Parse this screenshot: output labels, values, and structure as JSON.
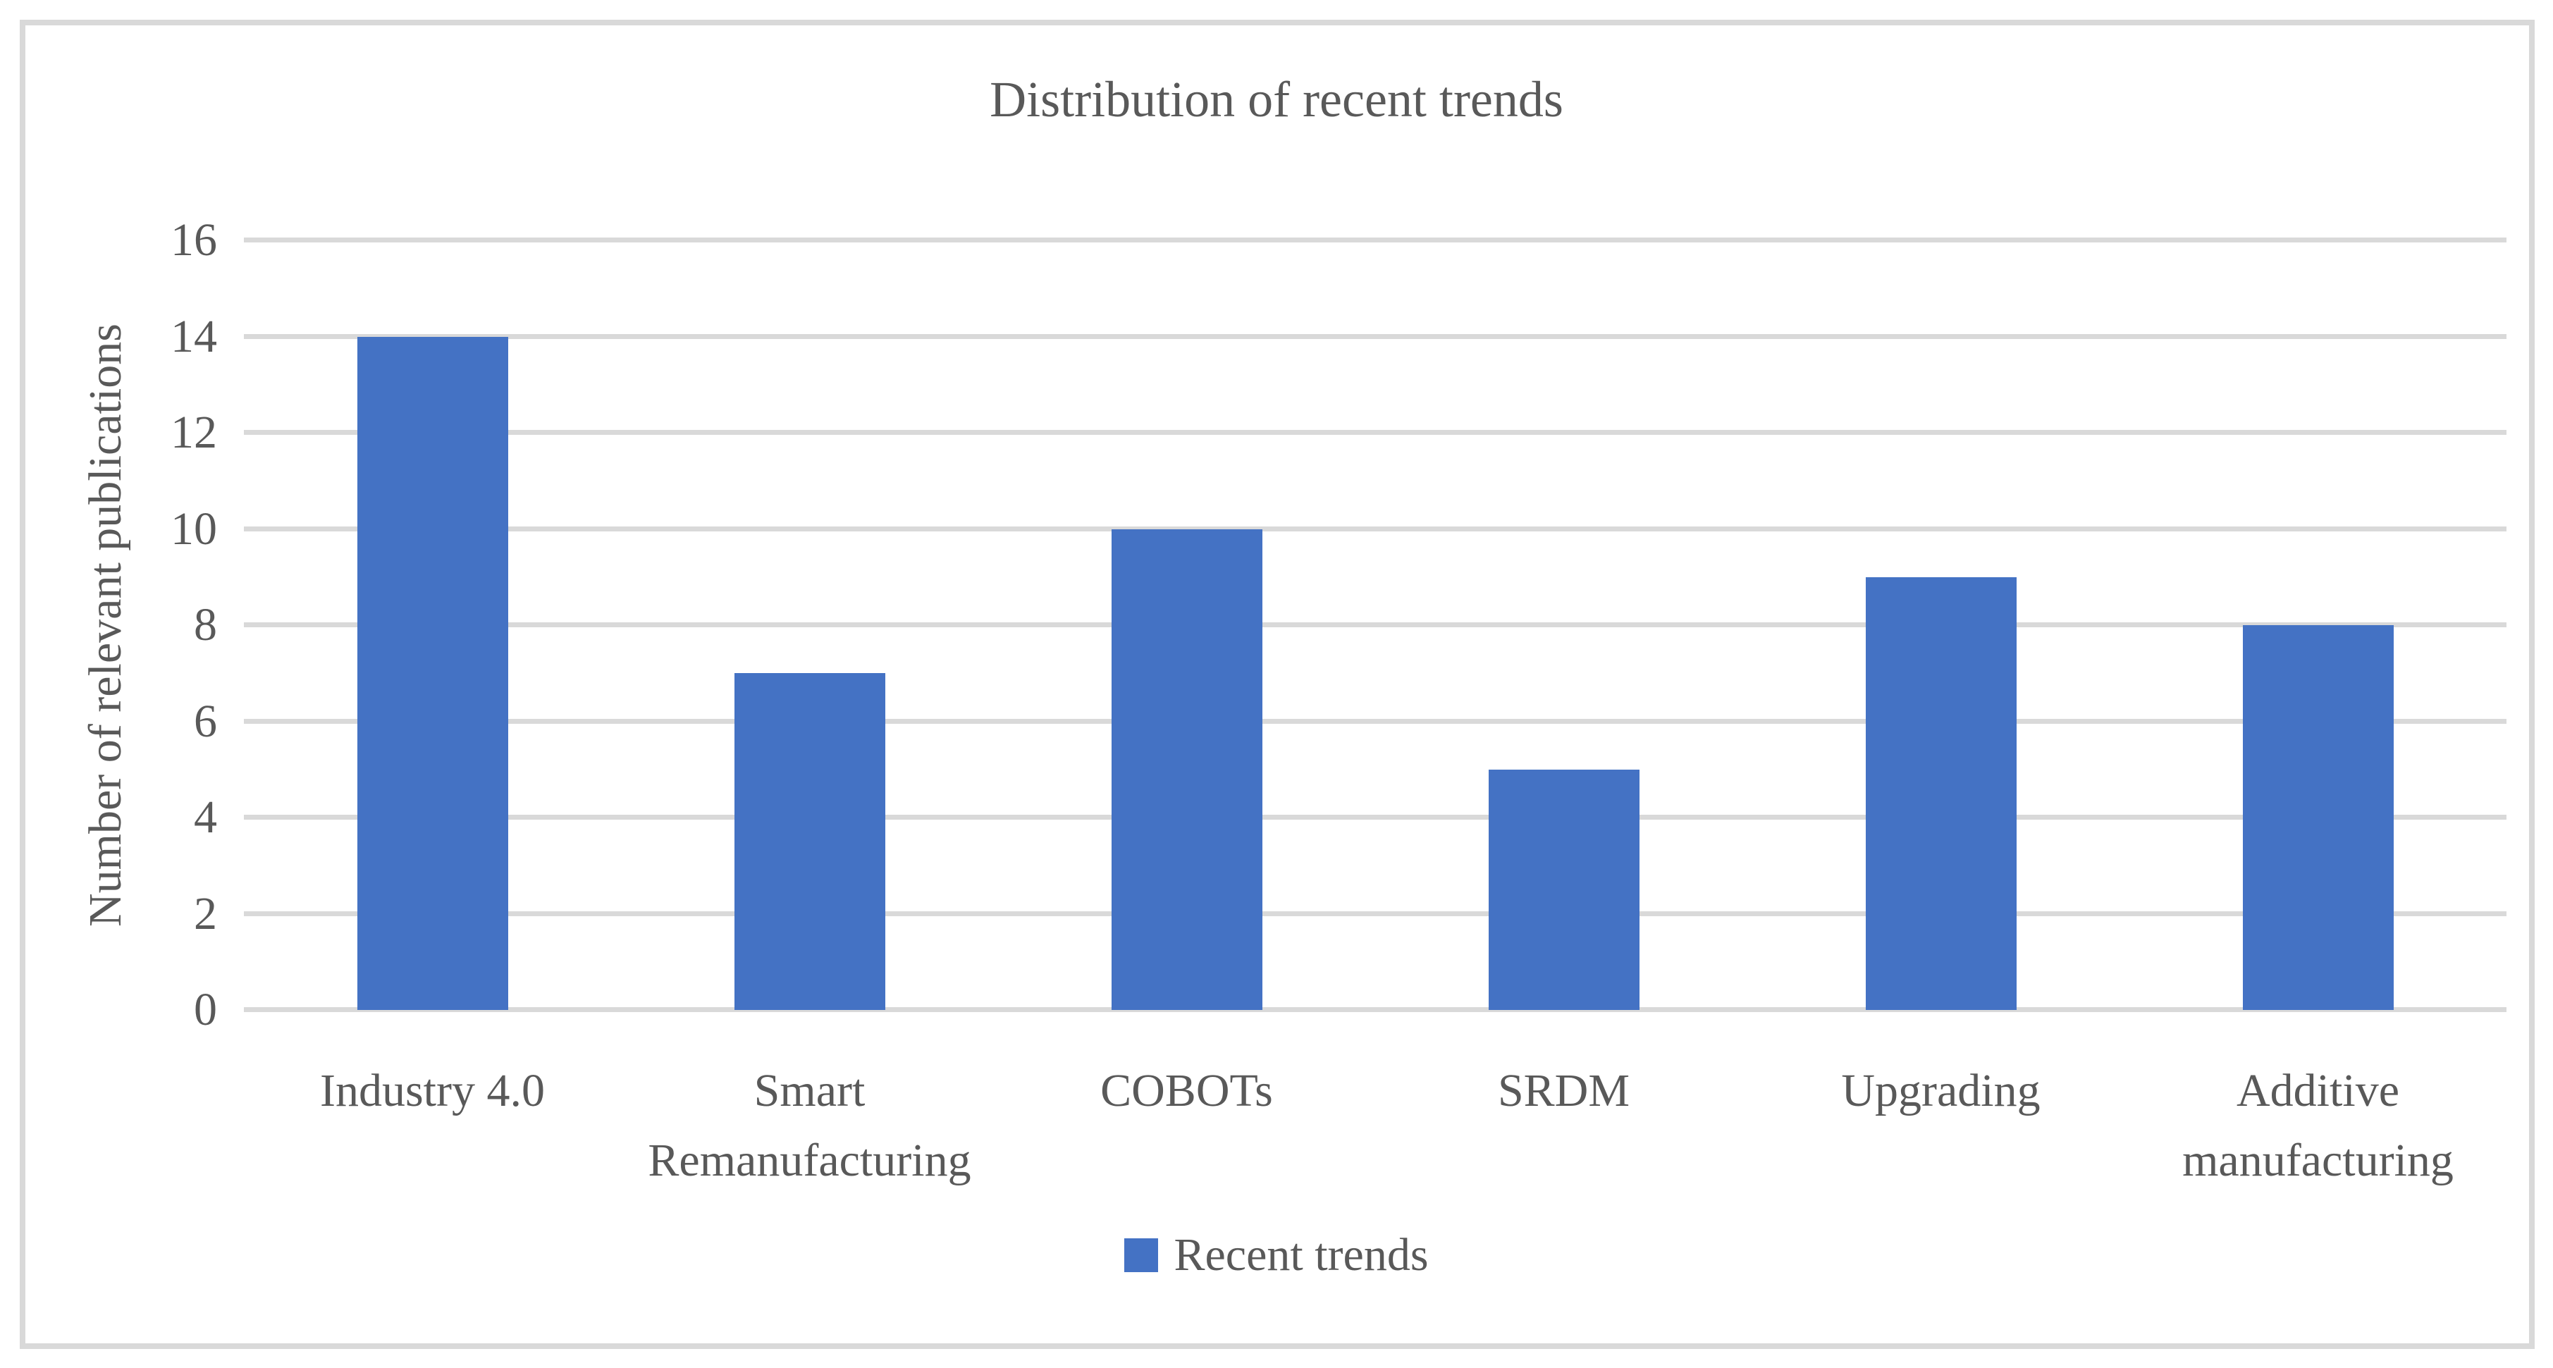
{
  "chart_data": {
    "type": "bar",
    "title": "Distribution of recent trends",
    "xlabel": "",
    "ylabel": "Number of relevant publications",
    "categories": [
      "Industry 4.0",
      "Smart Remanufacturing",
      "COBOTs",
      "SRDM",
      "Upgrading",
      "Additive manufacturing"
    ],
    "series": [
      {
        "name": "Recent trends",
        "values": [
          14,
          7,
          10,
          5,
          9,
          8
        ],
        "color": "#4472C4"
      }
    ],
    "ylim": [
      0,
      16
    ],
    "yticks": [
      0,
      2,
      4,
      6,
      8,
      10,
      12,
      14,
      16
    ],
    "grid": true,
    "legend_position": "bottom",
    "colors": {
      "bar": "#4472C4",
      "gridline": "#D9D9D9",
      "axis_text": "#595959",
      "figure_border": "#D9D9D9",
      "background": "#FFFFFF"
    }
  },
  "legend": {
    "label": "Recent trends"
  }
}
